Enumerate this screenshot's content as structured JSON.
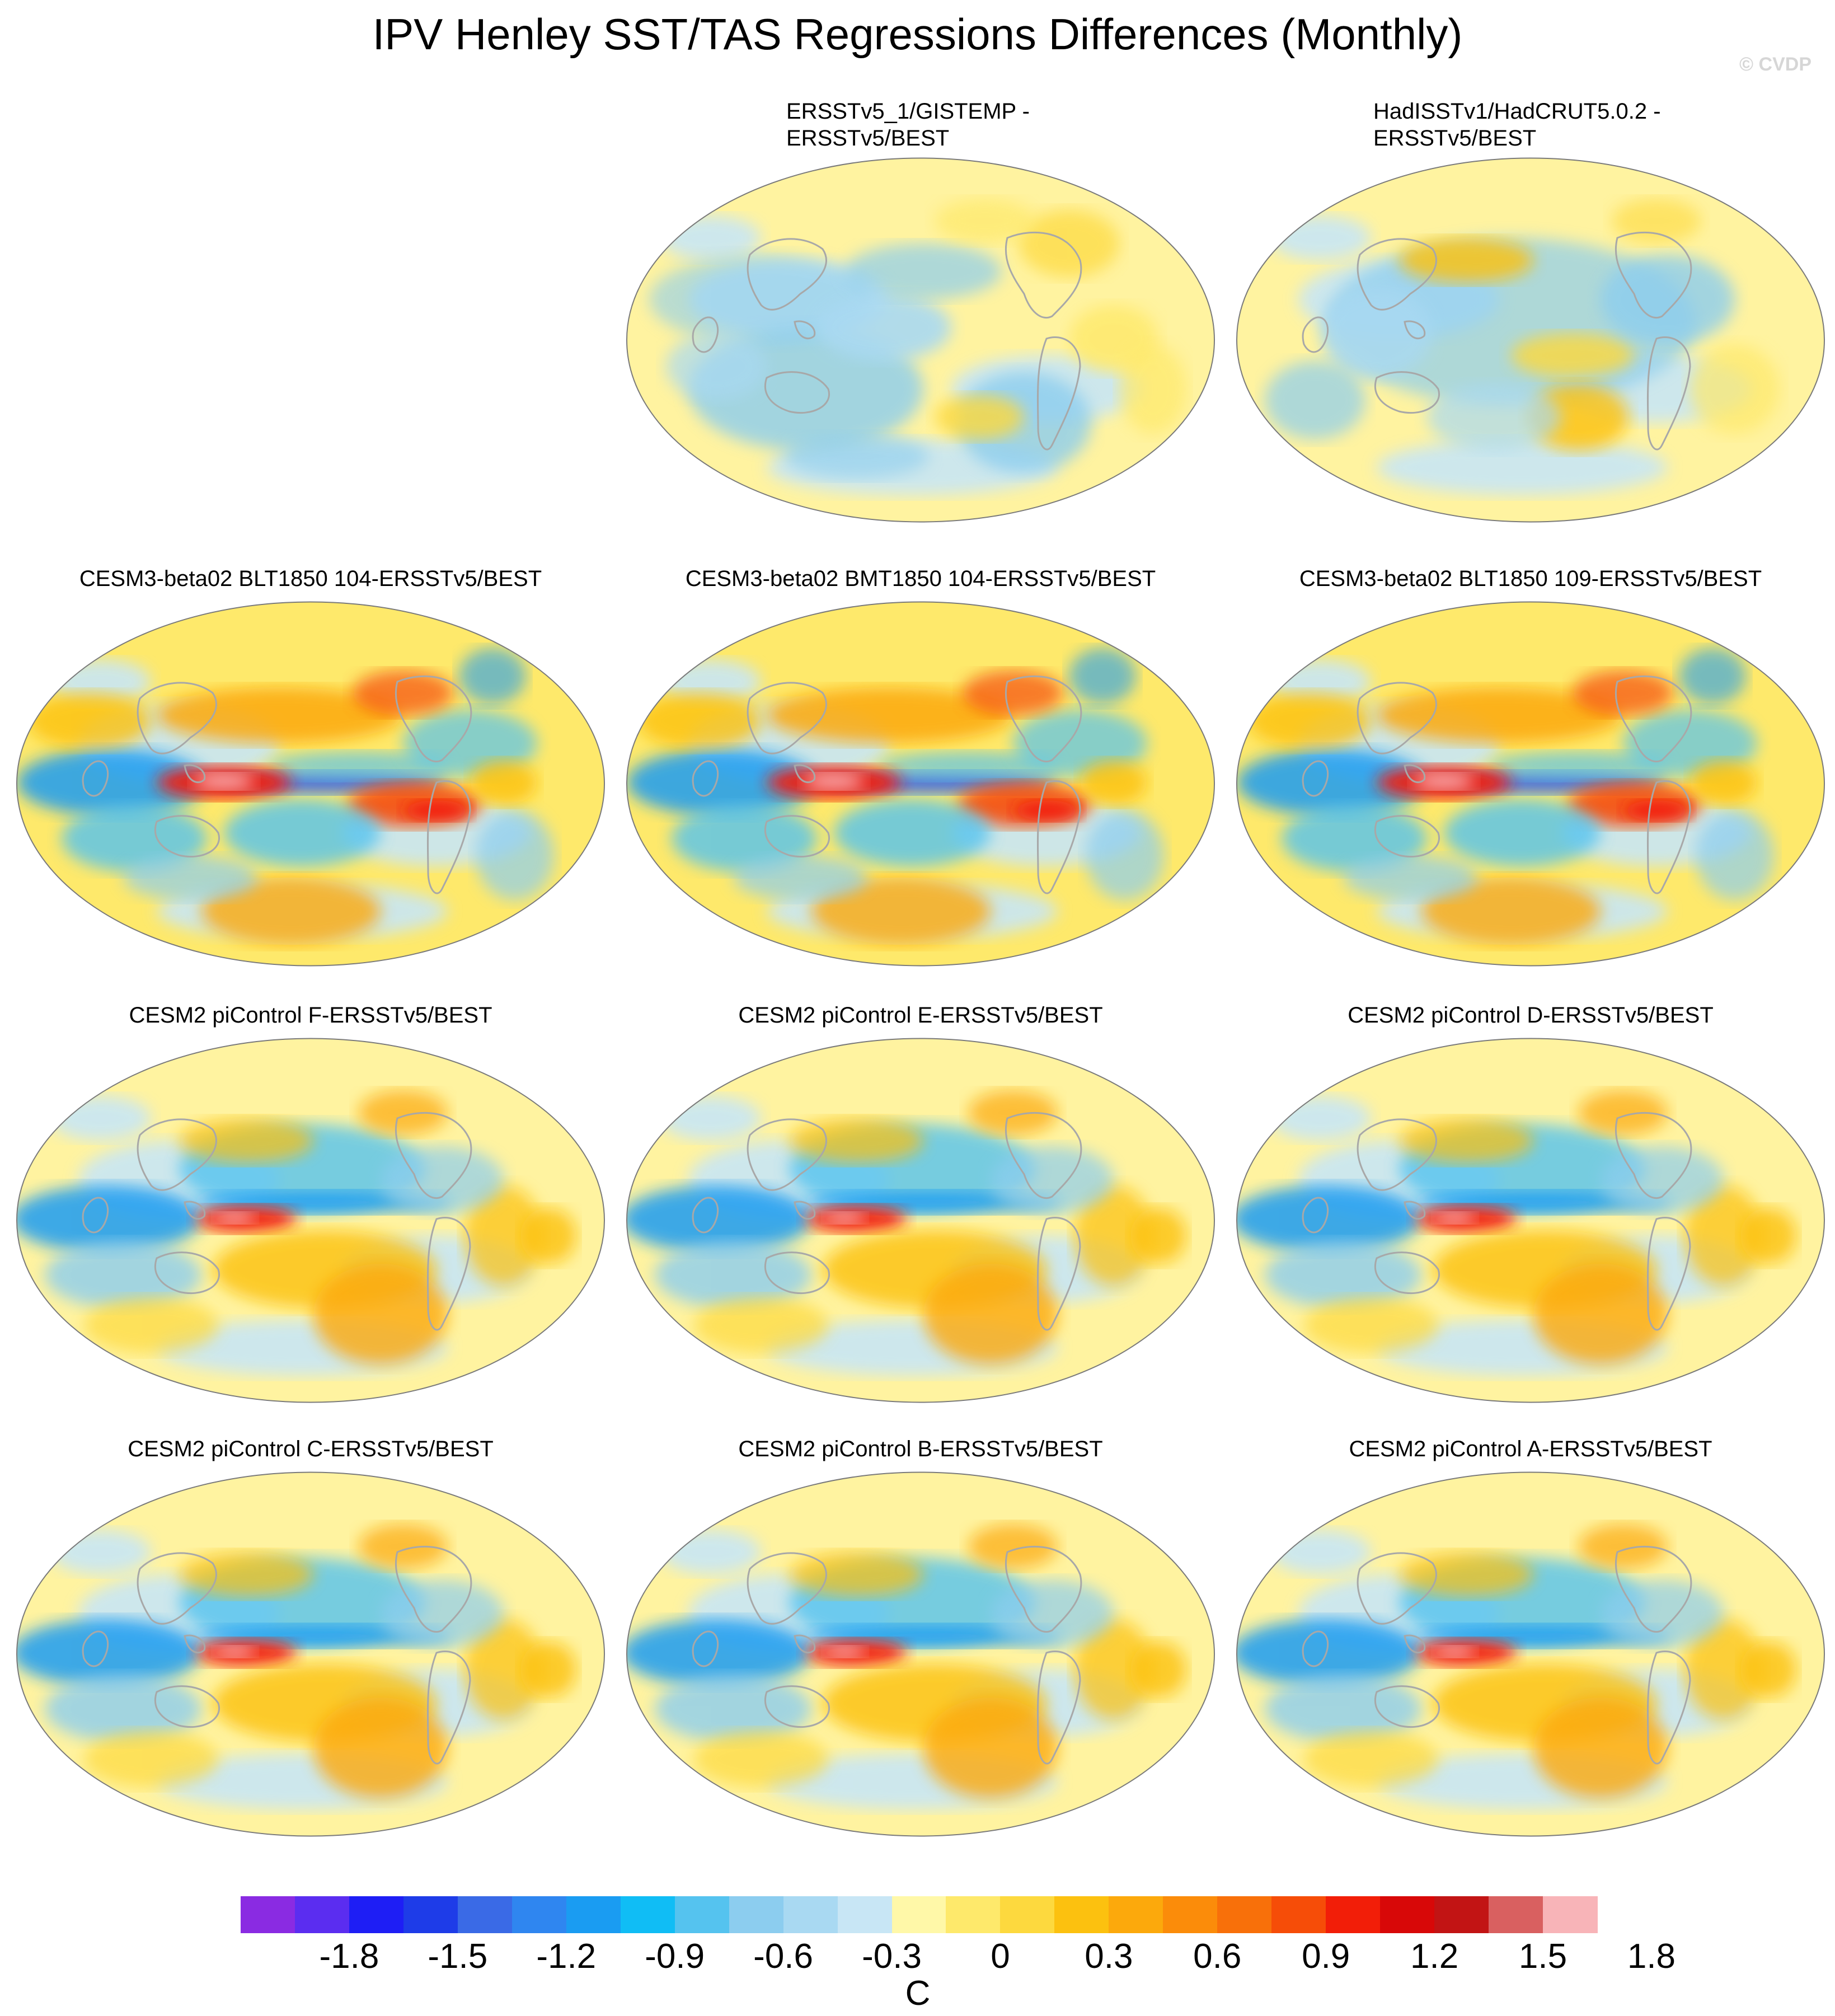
{
  "title": "IPV Henley SST/TAS Regressions Differences (Monthly)",
  "watermark": "© CVDP",
  "panels": [
    {
      "title": "ERSSTv5_1/GISTEMP -\nERSSTv5/BEST",
      "style": "obs1"
    },
    {
      "title": "HadISSTv1/HadCRUT5.0.2 -\nERSSTv5/BEST",
      "style": "obs2"
    },
    {
      "title": "CESM3-beta02 BLT1850 104-ERSSTv5/BEST",
      "style": "cesm3"
    },
    {
      "title": "CESM3-beta02 BMT1850 104-ERSSTv5/BEST",
      "style": "cesm3"
    },
    {
      "title": "CESM3-beta02 BLT1850 109-ERSSTv5/BEST",
      "style": "cesm3"
    },
    {
      "title": "CESM2 piControl F-ERSSTv5/BEST",
      "style": "cesm2"
    },
    {
      "title": "CESM2 piControl E-ERSSTv5/BEST",
      "style": "cesm2"
    },
    {
      "title": "CESM2 piControl D-ERSSTv5/BEST",
      "style": "cesm2"
    },
    {
      "title": "CESM2 piControl C-ERSSTv5/BEST",
      "style": "cesm2"
    },
    {
      "title": "CESM2 piControl B-ERSSTv5/BEST",
      "style": "cesm2"
    },
    {
      "title": "CESM2 piControl A-ERSSTv5/BEST",
      "style": "cesm2"
    }
  ],
  "colorbar": {
    "colors": [
      "#8a2be2",
      "#5b2df0",
      "#1e1ef5",
      "#1e3ce8",
      "#3a6ae6",
      "#2f86f0",
      "#1a9cf2",
      "#10bdf5",
      "#55c3ef",
      "#8ccdef",
      "#a9d9f2",
      "#c8e6f5",
      "#fff8a8",
      "#fee96b",
      "#fdd93e",
      "#fcc10f",
      "#fca90c",
      "#fb8c0a",
      "#f8700a",
      "#f64d08",
      "#f21e08",
      "#d80808",
      "#c21414",
      "#d96060",
      "#f8b4b8"
    ],
    "tick_labels": [
      "-1.8",
      "-1.5",
      "-1.2",
      "-0.9",
      "-0.6",
      "-0.3",
      "0",
      "0.3",
      "0.6",
      "0.9",
      "1.2",
      "1.5",
      "1.8"
    ],
    "units": "C"
  }
}
